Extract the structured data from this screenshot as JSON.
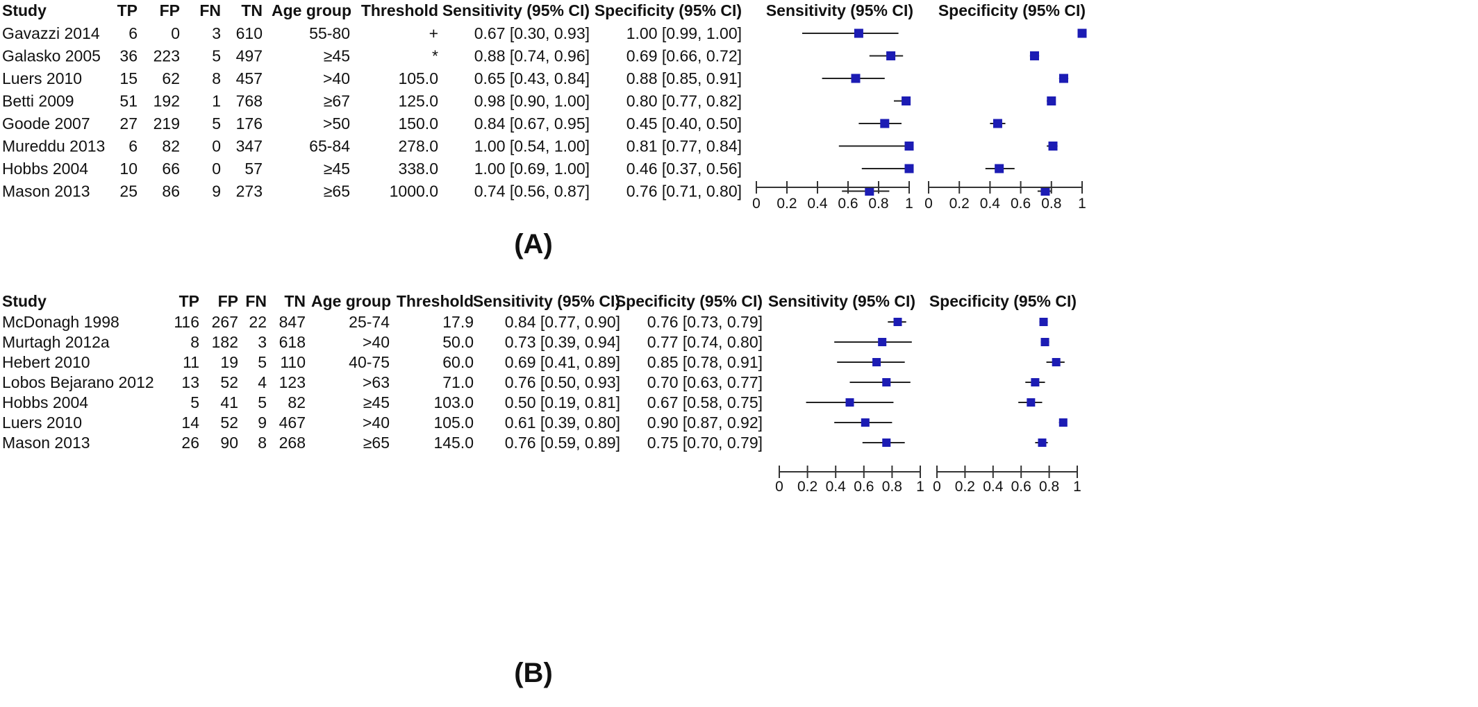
{
  "chart_data": [
    {
      "type": "forest",
      "panel_label": "(A)",
      "headers": [
        "Study",
        "TP",
        "FP",
        "FN",
        "TN",
        "Age group",
        "Threshold",
        "Sensitivity (95% CI)",
        "Specificity (95% CI)",
        "Sensitivity (95% CI)",
        "Specificity (95% CI)"
      ],
      "xlim": [
        0,
        1
      ],
      "xticks": [
        "0",
        "0.2",
        "0.4",
        "0.6",
        "0.8",
        "1"
      ],
      "rows": [
        {
          "study": "Gavazzi 2014",
          "tp": "6",
          "fp": "0",
          "fn": "3",
          "tn": "610",
          "age": "55-80",
          "threshold": "+",
          "sens_text": "0.67 [0.30, 0.93]",
          "spec_text": "1.00 [0.99, 1.00]",
          "sens": [
            0.67,
            0.3,
            0.93
          ],
          "spec": [
            1.0,
            0.99,
            1.0
          ]
        },
        {
          "study": "Galasko 2005",
          "tp": "36",
          "fp": "223",
          "fn": "5",
          "tn": "497",
          "age": "≥45",
          "threshold": "*",
          "sens_text": "0.88 [0.74, 0.96]",
          "spec_text": "0.69 [0.66, 0.72]",
          "sens": [
            0.88,
            0.74,
            0.96
          ],
          "spec": [
            0.69,
            0.66,
            0.72
          ]
        },
        {
          "study": "Luers 2010",
          "tp": "15",
          "fp": "62",
          "fn": "8",
          "tn": "457",
          "age": ">40",
          "threshold": "105.0",
          "sens_text": "0.65 [0.43, 0.84]",
          "spec_text": "0.88 [0.85, 0.91]",
          "sens": [
            0.65,
            0.43,
            0.84
          ],
          "spec": [
            0.88,
            0.85,
            0.91
          ]
        },
        {
          "study": "Betti 2009",
          "tp": "51",
          "fp": "192",
          "fn": "1",
          "tn": "768",
          "age": "≥67",
          "threshold": "125.0",
          "sens_text": "0.98 [0.90, 1.00]",
          "spec_text": "0.80 [0.77, 0.82]",
          "sens": [
            0.98,
            0.9,
            1.0
          ],
          "spec": [
            0.8,
            0.77,
            0.82
          ]
        },
        {
          "study": "Goode 2007",
          "tp": "27",
          "fp": "219",
          "fn": "5",
          "tn": "176",
          "age": ">50",
          "threshold": "150.0",
          "sens_text": "0.84 [0.67, 0.95]",
          "spec_text": "0.45 [0.40, 0.50]",
          "sens": [
            0.84,
            0.67,
            0.95
          ],
          "spec": [
            0.45,
            0.4,
            0.5
          ]
        },
        {
          "study": "Mureddu 2013",
          "tp": "6",
          "fp": "82",
          "fn": "0",
          "tn": "347",
          "age": "65-84",
          "threshold": "278.0",
          "sens_text": "1.00 [0.54, 1.00]",
          "spec_text": "0.81 [0.77, 0.84]",
          "sens": [
            1.0,
            0.54,
            1.0
          ],
          "spec": [
            0.81,
            0.77,
            0.84
          ]
        },
        {
          "study": "Hobbs 2004",
          "tp": "10",
          "fp": "66",
          "fn": "0",
          "tn": "57",
          "age": "≥45",
          "threshold": "338.0",
          "sens_text": "1.00 [0.69, 1.00]",
          "spec_text": "0.46 [0.37, 0.56]",
          "sens": [
            1.0,
            0.69,
            1.0
          ],
          "spec": [
            0.46,
            0.37,
            0.56
          ]
        },
        {
          "study": "Mason 2013",
          "tp": "25",
          "fp": "86",
          "fn": "9",
          "tn": "273",
          "age": "≥65",
          "threshold": "1000.0",
          "sens_text": "0.74 [0.56, 0.87]",
          "spec_text": "0.76 [0.71, 0.80]",
          "sens": [
            0.74,
            0.56,
            0.87
          ],
          "spec": [
            0.76,
            0.71,
            0.8
          ]
        }
      ]
    },
    {
      "type": "forest",
      "panel_label": "(B)",
      "headers": [
        "Study",
        "TP",
        "FP",
        "FN",
        "TN",
        "Age group",
        "Threshold",
        "Sensitivity (95% CI)",
        "Specificity (95% CI)",
        "Sensitivity (95% CI)",
        "Specificity (95% CI)"
      ],
      "xlim": [
        0,
        1
      ],
      "xticks": [
        "0",
        "0.2",
        "0.4",
        "0.6",
        "0.8",
        "1"
      ],
      "rows": [
        {
          "study": "McDonagh 1998",
          "tp": "116",
          "fp": "267",
          "fn": "22",
          "tn": "847",
          "age": "25-74",
          "threshold": "17.9",
          "sens_text": "0.84 [0.77, 0.90]",
          "spec_text": "0.76 [0.73, 0.79]",
          "sens": [
            0.84,
            0.77,
            0.9
          ],
          "spec": [
            0.76,
            0.73,
            0.79
          ]
        },
        {
          "study": "Murtagh 2012a",
          "tp": "8",
          "fp": "182",
          "fn": "3",
          "tn": "618",
          "age": ">40",
          "threshold": "50.0",
          "sens_text": "0.73 [0.39, 0.94]",
          "spec_text": "0.77 [0.74, 0.80]",
          "sens": [
            0.73,
            0.39,
            0.94
          ],
          "spec": [
            0.77,
            0.74,
            0.8
          ]
        },
        {
          "study": "Hebert 2010",
          "tp": "11",
          "fp": "19",
          "fn": "5",
          "tn": "110",
          "age": "40-75",
          "threshold": "60.0",
          "sens_text": "0.69 [0.41, 0.89]",
          "spec_text": "0.85 [0.78, 0.91]",
          "sens": [
            0.69,
            0.41,
            0.89
          ],
          "spec": [
            0.85,
            0.78,
            0.91
          ]
        },
        {
          "study": "Lobos Bejarano 2012",
          "tp": "13",
          "fp": "52",
          "fn": "4",
          "tn": "123",
          "age": ">63",
          "threshold": "71.0",
          "sens_text": "0.76 [0.50, 0.93]",
          "spec_text": "0.70 [0.63, 0.77]",
          "sens": [
            0.76,
            0.5,
            0.93
          ],
          "spec": [
            0.7,
            0.63,
            0.77
          ]
        },
        {
          "study": "Hobbs 2004",
          "tp": "5",
          "fp": "41",
          "fn": "5",
          "tn": "82",
          "age": "≥45",
          "threshold": "103.0",
          "sens_text": "0.50 [0.19, 0.81]",
          "spec_text": "0.67 [0.58, 0.75]",
          "sens": [
            0.5,
            0.19,
            0.81
          ],
          "spec": [
            0.67,
            0.58,
            0.75
          ]
        },
        {
          "study": "Luers 2010",
          "tp": "14",
          "fp": "52",
          "fn": "9",
          "tn": "467",
          "age": ">40",
          "threshold": "105.0",
          "sens_text": "0.61 [0.39, 0.80]",
          "spec_text": "0.90 [0.87, 0.92]",
          "sens": [
            0.61,
            0.39,
            0.8
          ],
          "spec": [
            0.9,
            0.87,
            0.92
          ]
        },
        {
          "study": "Mason 2013",
          "tp": "26",
          "fp": "90",
          "fn": "8",
          "tn": "268",
          "age": "≥65",
          "threshold": "145.0",
          "sens_text": "0.76 [0.59, 0.89]",
          "spec_text": "0.75 [0.70, 0.79]",
          "sens": [
            0.76,
            0.59,
            0.89
          ],
          "spec": [
            0.75,
            0.7,
            0.79
          ]
        }
      ]
    }
  ],
  "colors": {
    "marker": "#1c1cb4",
    "line": "#222222",
    "axis": "#333333",
    "text": "#111111"
  }
}
